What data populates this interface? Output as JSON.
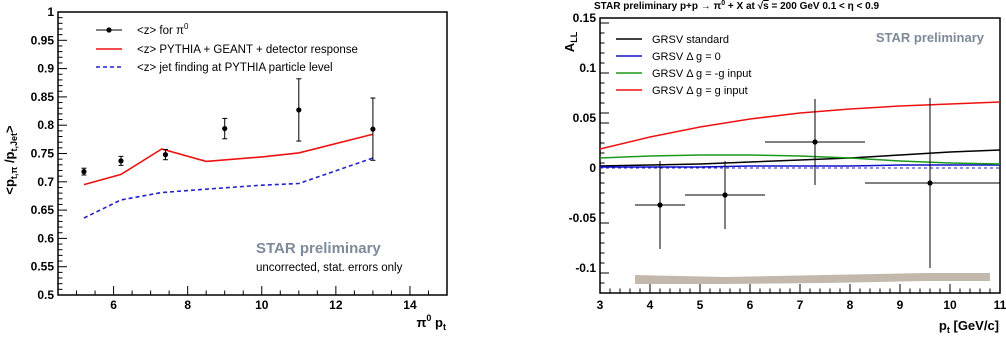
{
  "chart_data": [
    {
      "type": "scatter",
      "title": "",
      "ylabel": "<p_t,π / p_t,Jet>",
      "ylabel_main": "<p",
      "ylabel_sub1": "t,π",
      "ylabel_mid": " /p",
      "ylabel_sub2": "t,Jet",
      "ylabel_end": ">",
      "xlabel": "π0 pt",
      "xlabel_base": "π",
      "xlabel_sup": "0",
      "xlabel_rest": " p",
      "xlabel_sub": "t",
      "xlim": [
        4.5,
        15.0
      ],
      "ylim": [
        0.5,
        1.0
      ],
      "x_ticks": [
        6,
        8,
        10,
        12,
        14
      ],
      "y_ticks": [
        0.5,
        0.55,
        0.6,
        0.65,
        0.7,
        0.75,
        0.8,
        0.85,
        0.9,
        0.95,
        1.0
      ],
      "y_tick_labels": [
        "0.5",
        "0.55",
        "0.6",
        "0.65",
        "0.7",
        "0.75",
        "0.8",
        "0.85",
        "0.9",
        "0.95",
        "1"
      ],
      "series": [
        {
          "name": "<z> for π0",
          "legend_text": "<z> for π",
          "legend_sup": "0",
          "kind": "points",
          "color": "#000000",
          "points": [
            {
              "x": 5.2,
              "y": 0.718,
              "err": 0.006
            },
            {
              "x": 6.2,
              "y": 0.737,
              "err": 0.008
            },
            {
              "x": 7.4,
              "y": 0.748,
              "err": 0.009
            },
            {
              "x": 9.0,
              "y": 0.794,
              "err": 0.018
            },
            {
              "x": 11.0,
              "y": 0.827,
              "err": 0.055
            },
            {
              "x": 13.0,
              "y": 0.793,
              "err": 0.055
            }
          ]
        },
        {
          "name": "<z> PYTHIA + GEANT + detector response",
          "kind": "line",
          "color": "#ee1111",
          "dash": "",
          "x": [
            5.2,
            6.2,
            7.3,
            8.5,
            10.0,
            11.0,
            13.0
          ],
          "y": [
            0.695,
            0.713,
            0.758,
            0.736,
            0.744,
            0.751,
            0.784
          ]
        },
        {
          "name": "<z> jet finding at PYTHIA particle level",
          "kind": "line",
          "color": "#2222cc",
          "dash": "4,3",
          "x": [
            5.2,
            6.2,
            7.3,
            8.5,
            10.0,
            11.0,
            13.0
          ],
          "y": [
            0.636,
            0.668,
            0.681,
            0.687,
            0.694,
            0.697,
            0.742
          ]
        }
      ],
      "annotations": {
        "preliminary": "STAR preliminary",
        "note": "uncorrected, stat. errors only"
      },
      "legend_placement": "top-left",
      "grid": false
    },
    {
      "type": "scatter",
      "title": "STAR preliminary p+p → π0 + X at √s = 200 GeV 0.1 < η < 0.9",
      "title_pre": "STAR preliminary p+p → π",
      "title_sup": "0",
      "title_mid": " + X at ",
      "title_root": "√",
      "title_s": "s",
      "title_end": " = 200 GeV 0.1 < η < 0.9",
      "ylabel": "A_LL",
      "ylabel_base": "A",
      "ylabel_sub": "LL",
      "xlabel": "pt [GeV/c]",
      "xlabel_base": "p",
      "xlabel_sub": "t",
      "xlabel_rest": " [GeV/c]",
      "xlim": [
        3,
        11
      ],
      "ylim": [
        -0.125,
        0.15
      ],
      "x_ticks": [
        3,
        4,
        5,
        6,
        7,
        8,
        9,
        10,
        11
      ],
      "x_tick_labels": [
        "3",
        "4",
        "5",
        "6",
        "7",
        "8",
        "9",
        "10",
        "11"
      ],
      "y_ticks": [
        -0.1,
        -0.05,
        0,
        0.05,
        0.1,
        0.15
      ],
      "y_tick_labels": [
        "-0.1",
        "-0.05",
        "0",
        "0.05",
        "0.1",
        "0.15"
      ],
      "series": [
        {
          "name": "GRSV standard",
          "kind": "line",
          "color": "#000000",
          "x": [
            3,
            4,
            5,
            6,
            7,
            8,
            9,
            10,
            11
          ],
          "y": [
            0.002,
            0.003,
            0.004,
            0.006,
            0.008,
            0.01,
            0.013,
            0.016,
            0.018
          ]
        },
        {
          "name": "GRSV Δ g = 0",
          "kind": "line",
          "color": "#1010cc",
          "x": [
            3,
            4,
            5,
            6,
            7,
            8,
            9,
            10,
            11
          ],
          "y": [
            0.001,
            0.001,
            0.001,
            0.002,
            0.002,
            0.002,
            0.003,
            0.003,
            0.003
          ]
        },
        {
          "name": "GRSV Δ g = -g input",
          "kind": "line",
          "color": "#1a9a1a",
          "x": [
            3,
            4,
            5,
            6,
            7,
            8,
            9,
            10,
            11
          ],
          "y": [
            0.01,
            0.012,
            0.013,
            0.013,
            0.012,
            0.01,
            0.007,
            0.005,
            0.004
          ]
        },
        {
          "name": "GRSV Δ g = g input",
          "kind": "line",
          "color": "#ee1111",
          "x": [
            3,
            4,
            5,
            6,
            7,
            8,
            9,
            10,
            11
          ],
          "y": [
            0.019,
            0.031,
            0.041,
            0.049,
            0.055,
            0.059,
            0.062,
            0.064,
            0.066
          ]
        },
        {
          "name": "data",
          "kind": "points",
          "color": "#000000",
          "points": [
            {
              "x": 4.2,
              "y": -0.037,
              "err": 0.044,
              "xlo": 3.7,
              "xhi": 4.7
            },
            {
              "x": 5.5,
              "y": -0.027,
              "err": 0.034,
              "xlo": 4.7,
              "xhi": 6.3
            },
            {
              "x": 7.3,
              "y": 0.026,
              "err": 0.043,
              "xlo": 6.3,
              "xhi": 8.3
            },
            {
              "x": 9.6,
              "y": -0.015,
              "err": 0.085,
              "xlo": 8.3,
              "xhi": 11
            }
          ]
        }
      ],
      "systematic_band": {
        "color": "#c2b8ac",
        "x": [
          3.7,
          5.5,
          7.5,
          9.5,
          10.8
        ],
        "ylo": [
          -0.116,
          -0.116,
          -0.115,
          -0.113,
          -0.113
        ],
        "yhi": [
          -0.107,
          -0.109,
          -0.107,
          -0.105,
          -0.105
        ]
      },
      "dashed_zero": {
        "color": "#2222cc",
        "y": 0
      },
      "annotations": {
        "preliminary": "STAR preliminary"
      },
      "legend_placement": "top-left",
      "grid": false
    }
  ]
}
